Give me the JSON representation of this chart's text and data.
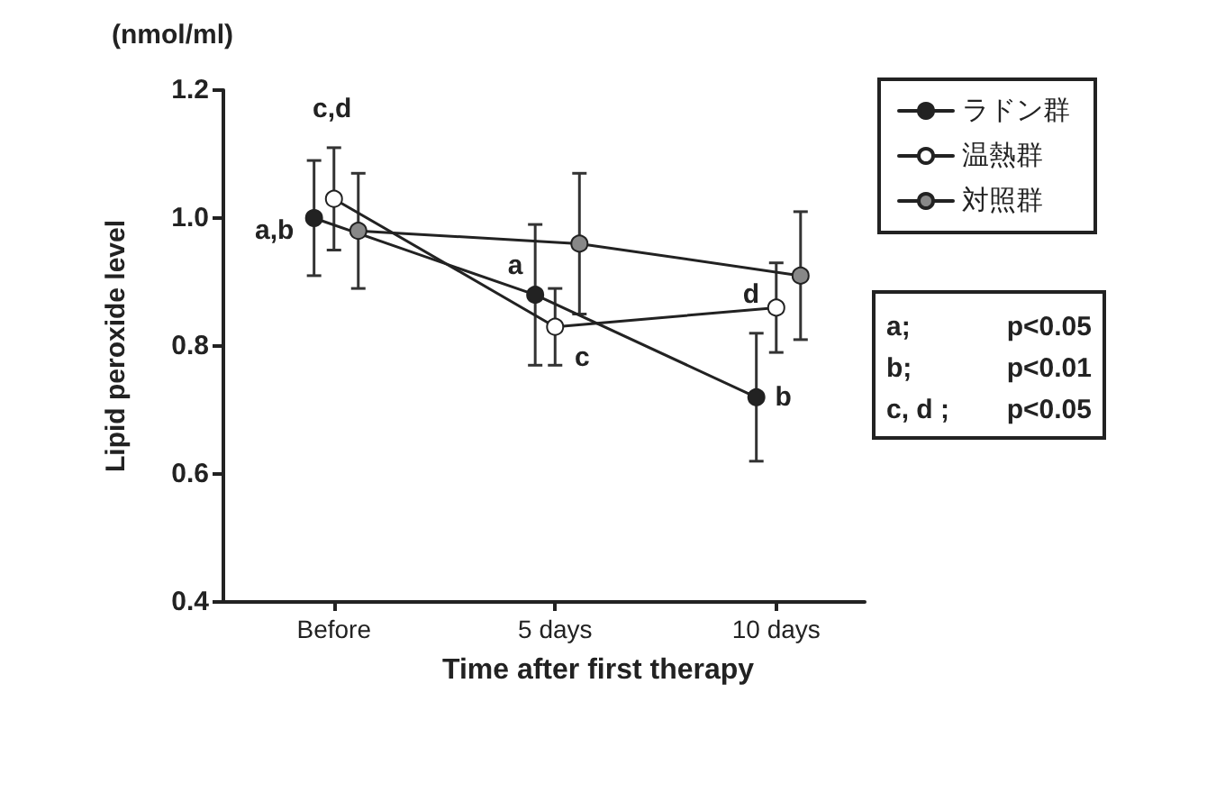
{
  "chart_data": {
    "type": "line",
    "xlabel": "Time after first therapy",
    "ylabel": "Lipid peroxide level",
    "xlim": [
      -2.5,
      12
    ],
    "xticks": [
      {
        "value": 0,
        "label": "Before"
      },
      {
        "value": 5,
        "label": "5 days"
      },
      {
        "value": 10,
        "label": "10 days"
      }
    ],
    "series": [
      {
        "name": "ラドン群",
        "color": "#222222",
        "x": [
          -0.45,
          4.55,
          9.55
        ],
        "values": [
          1.0,
          0.88,
          0.72
        ],
        "errors": [
          0.09,
          0.11,
          0.1
        ]
      },
      {
        "name": "温熱群",
        "color": "#ffffff",
        "x": [
          0,
          5,
          10
        ],
        "values": [
          1.03,
          0.83,
          0.86
        ],
        "errors": [
          0.08,
          0.06,
          0.07
        ]
      },
      {
        "name": "対照群",
        "color": "#888888",
        "x": [
          0.55,
          5.55,
          10.55
        ],
        "values": [
          0.98,
          0.96,
          0.91
        ],
        "errors": [
          0.09,
          0.11,
          0.1
        ]
      }
    ],
    "ylim": [
      0.4,
      1.2
    ],
    "yticks": [
      {
        "value": 0.4,
        "label": "0.4"
      },
      {
        "value": 0.6,
        "label": "0.6"
      },
      {
        "value": 0.8,
        "label": "0.8"
      },
      {
        "value": 1.0,
        "label": "1.0"
      },
      {
        "value": 1.2,
        "label": "1.2"
      }
    ],
    "annotations": [
      "(nmol/ml)",
      {
        "text": "a,b",
        "x": -0.45,
        "y": 1.0
      },
      {
        "text": "c,d",
        "x": 0,
        "y": 1.03
      },
      {
        "text": "a",
        "x": 4.55,
        "y": 0.88
      },
      {
        "text": "c",
        "x": 5,
        "y": 0.83
      },
      {
        "text": "d",
        "x": 10,
        "y": 0.86
      },
      {
        "text": "b",
        "x": 9.55,
        "y": 0.72
      },
      "a; p<0.05",
      "b; p<0.01",
      "c, d ; p<0.05"
    ],
    "grid": false,
    "legend": "top right",
    "marker": "circle",
    "line_style": "solid"
  }
}
